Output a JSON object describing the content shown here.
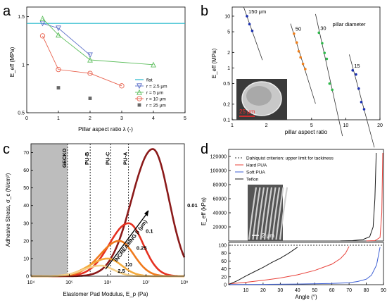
{
  "chart_data": [
    {
      "panel": "a",
      "type": "line",
      "xlabel": "Pillar aspect ratio λ (-)",
      "ylabel": "E_eff (MPa)",
      "xlim": [
        0,
        5
      ],
      "ylim": [
        0.5,
        1.6
      ],
      "xticks": [
        "0",
        "1",
        "2",
        "3",
        "4",
        "5"
      ],
      "yticks": [
        "0.5",
        "1",
        "1.5"
      ],
      "flat": {
        "name": "flat",
        "value": 1.43,
        "color": "#22b8cc"
      },
      "series": [
        {
          "name": "r = 2.5 μm",
          "marker": "triangle-down",
          "color": "#5a6ec8",
          "x": [
            0.5,
            1,
            2
          ],
          "y": [
            1.43,
            1.38,
            1.1
          ]
        },
        {
          "name": "r = 5 μm",
          "marker": "triangle-up",
          "color": "#5fbf5f",
          "x": [
            0.5,
            1,
            2,
            4
          ],
          "y": [
            1.48,
            1.31,
            1.05,
            1.0
          ]
        },
        {
          "name": "r = 10 μm",
          "marker": "circle",
          "color": "#e8604c",
          "x": [
            0.5,
            1,
            2,
            3
          ],
          "y": [
            1.3,
            0.95,
            0.91,
            0.78
          ]
        },
        {
          "name": "r = 25 μm",
          "marker": "square",
          "color": "#666666",
          "x": [
            1,
            2
          ],
          "y": [
            0.76,
            0.65
          ]
        }
      ],
      "legend": "bottom-right"
    },
    {
      "panel": "b",
      "type": "scatter",
      "xlabel": "pillar aspect ratio",
      "ylabel": "E_eff (MPa)",
      "x_scale": "log",
      "y_scale": "log",
      "xlim": [
        1,
        20
      ],
      "ylim": [
        0.1,
        15
      ],
      "xticks": [
        "1",
        "2",
        "5",
        "10",
        "20"
      ],
      "yticks": [
        "0.1",
        "0.2",
        "0.5",
        "1",
        "2",
        "5",
        "10"
      ],
      "legend_title": "pillar diameter",
      "scale_bar": "25 μm",
      "series": [
        {
          "name": "150 μm",
          "color": "#1a2fb0",
          "x": [
            1.35,
            1.42,
            1.5
          ],
          "y": [
            10,
            7,
            5.2
          ]
        },
        {
          "name": "50",
          "color": "#f07f1a",
          "x": [
            3.5,
            3.7,
            3.85,
            4.0,
            4.2,
            4.4
          ],
          "y": [
            4.6,
            3.1,
            2.1,
            1.6,
            1.2,
            0.95
          ]
        },
        {
          "name": "30",
          "color": "#2db84a",
          "x": [
            5.8,
            6.2,
            6.5,
            6.8,
            7.2,
            7.6
          ],
          "y": [
            4.8,
            3.0,
            1.95,
            1.5,
            0.5,
            0.38
          ]
        },
        {
          "name": "15",
          "color": "#1a2fb0",
          "x": [
            11.5,
            12.3,
            13.0,
            13.7,
            14.5
          ],
          "y": [
            0.9,
            0.75,
            0.4,
            0.22,
            0.16
          ]
        }
      ]
    },
    {
      "panel": "c",
      "type": "line",
      "xlabel": "Elastomer Pad Modulus, E_p (Pa)",
      "ylabel": "Adhesive Stress, σ_c (N/cm²)",
      "x_scale": "log",
      "xlim": [
        10000,
        100000000
      ],
      "ylim": [
        0,
        75
      ],
      "xticks": [
        "10⁴",
        "10⁵",
        "10⁶",
        "10⁷",
        "10⁸"
      ],
      "yticks": [
        "0",
        "10",
        "20",
        "30",
        "40",
        "50",
        "60",
        "70"
      ],
      "gecko": {
        "label": "GECKO",
        "x": 90000
      },
      "references": [
        {
          "label": "PU-B",
          "x": 350000
        },
        {
          "label": "PU-C",
          "x": 1200000
        },
        {
          "label": "PU-A",
          "x": 3500000
        }
      ],
      "arrow_label": "INCREASING β (μm)",
      "series": [
        {
          "name": "0.01",
          "color": "#8b1a1a",
          "peak_x": 15000000,
          "peak_y": 72,
          "width": 0.55
        },
        {
          "name": "0.1",
          "color": "#e53020",
          "peak_x": 3500000,
          "peak_y": 30,
          "width": 0.5
        },
        {
          "name": "0.25",
          "color": "#f07a1c",
          "peak_x": 2000000,
          "peak_y": 20,
          "width": 0.5
        },
        {
          "name": "1.0",
          "color": "#f4aa3c",
          "peak_x": 1000000,
          "peak_y": 10,
          "width": 0.48
        },
        {
          "name": "2.5",
          "color": "#f5d08a",
          "peak_x": 650000,
          "peak_y": 6,
          "width": 0.45
        }
      ]
    },
    {
      "panel": "d",
      "type": "line",
      "xlabel": "Angle (°)",
      "ylabel": "E_eff (kPa)",
      "xlim": [
        0,
        90
      ],
      "ylim_bottom": [
        0,
        100
      ],
      "ylim_top": [
        0,
        130000
      ],
      "xticks": [
        "10",
        "20",
        "30",
        "40",
        "50",
        "60",
        "70",
        "80",
        "90"
      ],
      "yticks_bottom": [
        "0",
        "20",
        "40",
        "60",
        "80",
        "100"
      ],
      "yticks_top": [
        "20000",
        "40000",
        "60000",
        "80000",
        "100000",
        "120000"
      ],
      "dahlquist": {
        "label": "Dahlquist criterion: upper limit for tackiness",
        "value": 100
      },
      "scale_bar": "2 μm",
      "series": [
        {
          "name": "Hard PUA",
          "color": "#e8413a",
          "x": [
            0,
            10,
            20,
            30,
            40,
            50,
            60,
            65,
            68,
            70
          ],
          "y": [
            2,
            6,
            11,
            17,
            25,
            36,
            52,
            66,
            80,
            97
          ]
        },
        {
          "name": "Soft PUA",
          "color": "#3d5fd4",
          "x": [
            0,
            20,
            40,
            60,
            70,
            75,
            80,
            83,
            86,
            88
          ],
          "y": [
            0.3,
            0.8,
            1.6,
            3,
            5,
            8,
            14,
            24,
            50,
            95
          ]
        },
        {
          "name": "Teflon",
          "color": "#1a1a1a",
          "x": [
            0,
            5,
            10,
            15,
            20,
            25,
            30,
            35,
            40
          ],
          "y": [
            0.5,
            10,
            22,
            33,
            44,
            56,
            67,
            80,
            95
          ]
        }
      ],
      "top_series": [
        {
          "name": "Teflon",
          "color": "#1a1a1a",
          "x": [
            65,
            72,
            78,
            82,
            84,
            85,
            85.8
          ],
          "y": [
            100,
            500,
            2000,
            6000,
            20000,
            60000,
            125000
          ]
        },
        {
          "name": "Hard PUA",
          "color": "#e8413a",
          "x": [
            80,
            85,
            88,
            89,
            89.6
          ],
          "y": [
            100,
            500,
            5000,
            40000,
            125000
          ]
        }
      ]
    }
  ]
}
